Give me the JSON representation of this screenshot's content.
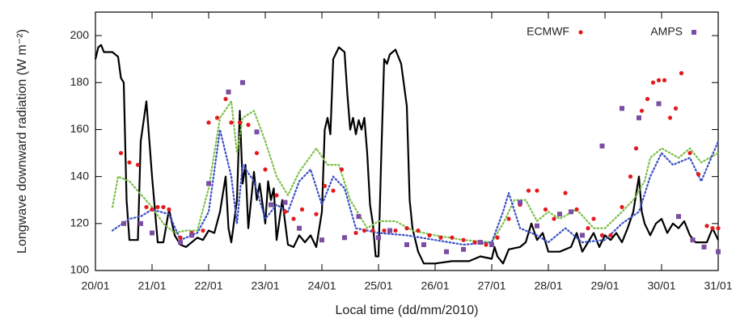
{
  "chart_data": {
    "type": "line",
    "xlabel": "Local time (dd/mm/2010)",
    "ylabel": "Longwave downward radiation (W m⁻²)",
    "xlim": [
      20,
      31
    ],
    "xticks": [
      {
        "value": 20,
        "label": "20/01"
      },
      {
        "value": 21,
        "label": "21/01"
      },
      {
        "value": 22,
        "label": "22/01"
      },
      {
        "value": 23,
        "label": "23/01"
      },
      {
        "value": 24,
        "label": "24/01"
      },
      {
        "value": 25,
        "label": "25/01"
      },
      {
        "value": 26,
        "label": "26/01"
      },
      {
        "value": 27,
        "label": "27/01"
      },
      {
        "value": 28,
        "label": "28/01"
      },
      {
        "value": 29,
        "label": "29/01"
      },
      {
        "value": 30,
        "label": "30/01"
      },
      {
        "value": 31,
        "label": "31/01"
      }
    ],
    "ylim": [
      100,
      210
    ],
    "yticks": [
      100,
      120,
      140,
      160,
      180,
      200
    ],
    "legend": "upper right",
    "series": [
      {
        "style": "solid",
        "color": "#000000",
        "x": [
          20.0,
          20.05,
          20.1,
          20.15,
          20.3,
          20.4,
          20.45,
          20.5,
          20.55,
          20.6,
          20.75,
          20.8,
          20.9,
          21.0,
          21.1,
          21.2,
          21.3,
          21.4,
          21.5,
          21.6,
          21.8,
          21.9,
          22.0,
          22.1,
          22.2,
          22.3,
          22.35,
          22.4,
          22.5,
          22.55,
          22.6,
          22.65,
          22.7,
          22.8,
          22.85,
          22.9,
          23.0,
          23.05,
          23.1,
          23.15,
          23.2,
          23.3,
          23.4,
          23.5,
          23.6,
          23.7,
          23.8,
          23.9,
          24.0,
          24.05,
          24.1,
          24.15,
          24.2,
          24.3,
          24.4,
          24.45,
          24.5,
          24.55,
          24.6,
          24.65,
          24.7,
          24.75,
          24.8,
          24.85,
          24.9,
          24.95,
          25.0,
          25.05,
          25.1,
          25.15,
          25.2,
          25.3,
          25.4,
          25.5,
          25.55,
          25.6,
          25.7,
          25.8,
          26.0,
          26.3,
          26.6,
          26.8,
          27.0,
          27.05,
          27.1,
          27.2,
          27.3,
          27.5,
          27.6,
          27.7,
          27.8,
          27.9,
          28.0,
          28.2,
          28.4,
          28.5,
          28.6,
          28.8,
          28.9,
          29.0,
          29.1,
          29.2,
          29.3,
          29.4,
          29.5,
          29.6,
          29.65,
          29.7,
          29.8,
          29.9,
          30.0,
          30.1,
          30.2,
          30.3,
          30.4,
          30.5,
          30.6,
          30.8,
          30.9,
          31.0
        ],
        "values": [
          190,
          195,
          196,
          193,
          193,
          191,
          182,
          180,
          130,
          113,
          113,
          155,
          172,
          140,
          112,
          112,
          126,
          115,
          111,
          110,
          114,
          113,
          117,
          116,
          125,
          140,
          118,
          112,
          130,
          168,
          137,
          145,
          118,
          142,
          130,
          137,
          120,
          138,
          130,
          135,
          113,
          130,
          111,
          110,
          115,
          112,
          115,
          110,
          125,
          160,
          165,
          158,
          190,
          195,
          193,
          175,
          160,
          165,
          158,
          164,
          160,
          165,
          150,
          128,
          120,
          106,
          106,
          150,
          190,
          188,
          192,
          194,
          188,
          170,
          130,
          118,
          108,
          103,
          103,
          104,
          104,
          106,
          105,
          110,
          106,
          103,
          109,
          110,
          112,
          120,
          113,
          116,
          108,
          108,
          110,
          116,
          108,
          116,
          110,
          115,
          113,
          116,
          112,
          118,
          125,
          140,
          125,
          120,
          115,
          120,
          122,
          116,
          120,
          118,
          121,
          115,
          112,
          112,
          118,
          113
        ]
      },
      {
        "style": "dotted",
        "color": "#7cc04a",
        "x": [
          20.3,
          20.4,
          20.6,
          21.0,
          21.2,
          21.4,
          21.6,
          21.8,
          22.0,
          22.2,
          22.4,
          22.5,
          22.6,
          22.8,
          23.0,
          23.2,
          23.4,
          23.6,
          23.9,
          24.1,
          24.3,
          24.5,
          24.8,
          25.0,
          25.3,
          25.6,
          26.0,
          26.5,
          27.0,
          27.2,
          27.4,
          27.6,
          27.8,
          28.0,
          28.2,
          28.5,
          28.8,
          29.0,
          29.3,
          29.5,
          29.7,
          29.8,
          30.0,
          30.3,
          30.5,
          30.7,
          31.0
        ],
        "values": [
          127,
          140,
          138,
          127,
          120,
          116,
          117,
          117,
          135,
          165,
          172,
          150,
          165,
          168,
          155,
          140,
          132,
          142,
          152,
          145,
          145,
          130,
          118,
          121,
          121,
          117,
          115,
          113,
          112,
          120,
          130,
          130,
          121,
          125,
          122,
          126,
          118,
          118,
          125,
          130,
          138,
          148,
          152,
          148,
          152,
          146,
          150
        ]
      },
      {
        "style": "dotted",
        "color": "#3a4fc4",
        "x": [
          20.3,
          20.6,
          20.8,
          21.0,
          21.3,
          21.5,
          21.8,
          22.0,
          22.2,
          22.4,
          22.5,
          22.6,
          22.8,
          23.0,
          23.2,
          23.4,
          23.6,
          23.8,
          24.0,
          24.2,
          24.4,
          24.6,
          25.0,
          25.5,
          26.0,
          26.5,
          27.0,
          27.2,
          27.3,
          27.5,
          27.8,
          28.0,
          28.3,
          28.6,
          29.0,
          29.3,
          29.6,
          29.8,
          30.0,
          30.2,
          30.5,
          30.7,
          31.0
        ],
        "values": [
          117,
          122,
          123,
          126,
          124,
          113,
          116,
          125,
          160,
          140,
          120,
          145,
          138,
          122,
          128,
          125,
          138,
          143,
          128,
          140,
          135,
          118,
          116,
          115,
          113,
          111,
          112,
          125,
          133,
          118,
          115,
          112,
          118,
          112,
          113,
          120,
          125,
          140,
          150,
          145,
          148,
          138,
          155
        ]
      },
      {
        "name": "ECMWF",
        "style": "points",
        "marker": "circle",
        "color": "#e31a1c",
        "x": [
          20.45,
          20.6,
          20.75,
          20.9,
          21.0,
          21.1,
          21.2,
          21.3,
          21.5,
          21.7,
          21.9,
          22.0,
          22.15,
          22.3,
          22.4,
          22.55,
          22.7,
          22.85,
          23.0,
          23.2,
          23.35,
          23.5,
          23.65,
          23.9,
          24.05,
          24.2,
          24.35,
          24.6,
          24.75,
          24.9,
          25.1,
          25.3,
          25.5,
          25.7,
          25.9,
          26.1,
          26.3,
          26.5,
          26.7,
          26.9,
          27.1,
          27.3,
          27.5,
          27.65,
          27.8,
          27.95,
          28.1,
          28.3,
          28.5,
          28.7,
          28.8,
          28.95,
          29.1,
          29.3,
          29.45,
          29.55,
          29.65,
          29.75,
          29.85,
          29.95,
          30.05,
          30.15,
          30.25,
          30.35,
          30.5,
          30.65,
          30.8,
          30.9,
          31.0
        ],
        "values": [
          150,
          146,
          145,
          127,
          126,
          127,
          127,
          126,
          114,
          116,
          117,
          163,
          165,
          173,
          163,
          163,
          162,
          150,
          143,
          132,
          125,
          122,
          126,
          124,
          136,
          134,
          143,
          116,
          117,
          117,
          117,
          117,
          118,
          117,
          115,
          114,
          114,
          113,
          112,
          111,
          114,
          122,
          128,
          134,
          134,
          126,
          122,
          133,
          126,
          118,
          122,
          115,
          115,
          127,
          140,
          152,
          168,
          173,
          180,
          181,
          181,
          165,
          169,
          184,
          150,
          141,
          119,
          118,
          118
        ]
      },
      {
        "name": "AMPS",
        "style": "points",
        "marker": "square",
        "color": "#7b4ea3",
        "x": [
          20.5,
          20.8,
          21.0,
          21.5,
          21.7,
          22.0,
          22.35,
          22.6,
          22.85,
          23.1,
          23.35,
          23.6,
          24.0,
          24.4,
          24.65,
          25.0,
          25.2,
          25.5,
          25.8,
          26.2,
          26.5,
          26.8,
          27.0,
          27.5,
          27.8,
          28.2,
          28.4,
          28.6,
          28.95,
          29.3,
          29.6,
          29.95,
          30.3,
          30.55,
          30.75,
          31.0
        ],
        "values": [
          120,
          120,
          116,
          112,
          115,
          137,
          176,
          180,
          159,
          128,
          129,
          118,
          113,
          114,
          123,
          114,
          117,
          111,
          111,
          108,
          109,
          112,
          111,
          129,
          119,
          124,
          125,
          115,
          153,
          169,
          165,
          171,
          123,
          113,
          110,
          108
        ]
      }
    ]
  }
}
